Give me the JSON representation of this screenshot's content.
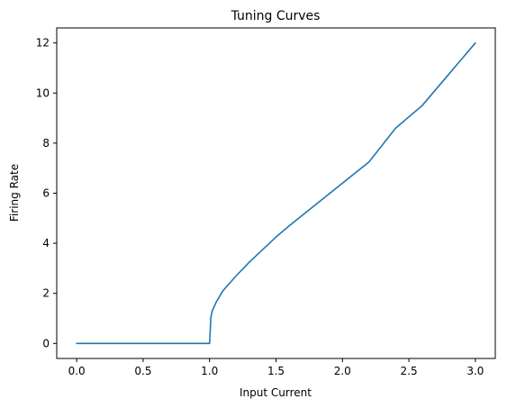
{
  "chart_data": {
    "type": "line",
    "title": "Tuning Curves",
    "xlabel": "Input Current",
    "ylabel": "Firing Rate",
    "xlim": [
      -0.15,
      3.15
    ],
    "ylim": [
      -0.6,
      12.6
    ],
    "xticks": [
      0.0,
      0.5,
      1.0,
      1.5,
      2.0,
      2.5,
      3.0
    ],
    "xtick_labels": [
      "0.0",
      "0.5",
      "1.0",
      "1.5",
      "2.0",
      "2.5",
      "3.0"
    ],
    "yticks": [
      0,
      2,
      4,
      6,
      8,
      10,
      12
    ],
    "ytick_labels": [
      "0",
      "2",
      "4",
      "6",
      "8",
      "10",
      "12"
    ],
    "grid": false,
    "legend": false,
    "line_color": "#1f77b4",
    "series": [
      {
        "x": [
          0.0,
          0.2,
          0.4,
          0.6,
          0.8,
          0.99,
          1.0,
          1.01,
          1.02,
          1.05,
          1.1,
          1.2,
          1.3,
          1.4,
          1.5,
          1.6,
          1.8,
          2.0,
          2.2,
          2.4,
          2.6,
          2.8,
          3.0
        ],
        "y": [
          0.0,
          0.0,
          0.0,
          0.0,
          0.0,
          0.0,
          0.0,
          1.05,
          1.3,
          1.65,
          2.1,
          2.7,
          3.25,
          3.75,
          4.25,
          4.7,
          5.55,
          6.4,
          7.25,
          8.6,
          9.5,
          10.75,
          12.0
        ]
      }
    ]
  }
}
